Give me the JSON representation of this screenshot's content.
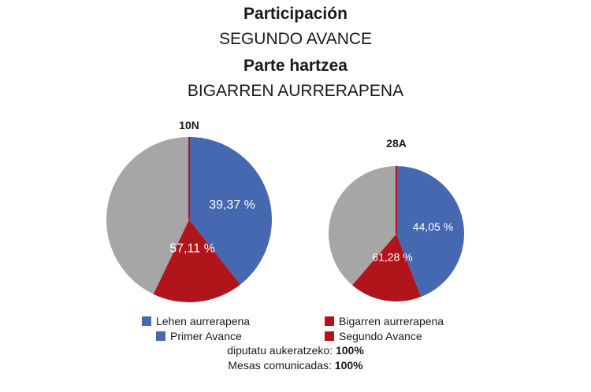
{
  "header": {
    "title_es": "Participación",
    "subtitle_es": "SEGUNDO AVANCE",
    "title_eu": "Parte hartzea",
    "subtitle_eu": "BIGARREN AURRERAPENA"
  },
  "colors": {
    "first_advance": "#4568b0",
    "second_advance": "#b0151c",
    "remainder": "#a6a6a6"
  },
  "chart_data": [
    {
      "type": "pie",
      "title": "10N",
      "slices": [
        {
          "name": "Primer Avance",
          "value": 39.37,
          "label": "39,37 %"
        },
        {
          "name": "Segundo Avance",
          "value": 17.74
        },
        {
          "name": "",
          "value": 42.89
        }
      ],
      "segundo_avance_total_label": "57,11 %"
    },
    {
      "type": "pie",
      "title": "28A",
      "slices": [
        {
          "name": "Primer Avance",
          "value": 44.05,
          "label": "44,05 %"
        },
        {
          "name": "Segundo Avance",
          "value": 17.23
        },
        {
          "name": "",
          "value": 38.72
        }
      ],
      "segundo_avance_total_label": "61,28 %"
    }
  ],
  "legend": {
    "first_eu": "Lehen aurrerapena",
    "second_eu": "Bigarren aurrerapena",
    "first_es": "Primer Avance",
    "second_es": "Segundo Avance"
  },
  "footer": {
    "line1_label": "diputatu aukeratzeko:",
    "line1_value": "100%",
    "line2_label": "Mesas comunicadas:",
    "line2_value": "100%"
  }
}
